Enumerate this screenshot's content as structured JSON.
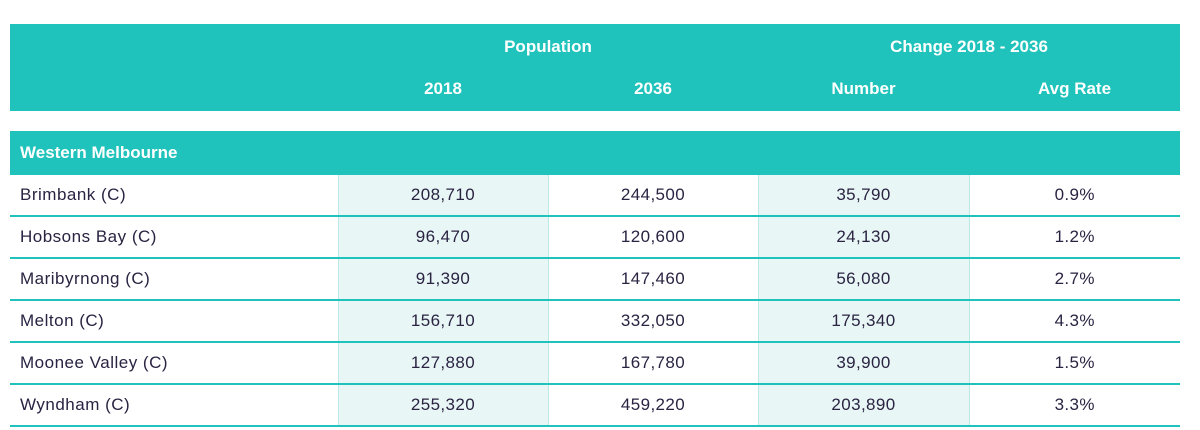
{
  "header": {
    "group_population": "Population",
    "group_change": "Change 2018 - 2036",
    "col_2018": "2018",
    "col_2036": "2036",
    "col_number": "Number",
    "col_avg_rate": "Avg Rate"
  },
  "region": {
    "name": "Western Melbourne"
  },
  "rows": [
    {
      "name": "Brimbank (C)",
      "pop_2018": "208,710",
      "pop_2036": "244,500",
      "change_number": "35,790",
      "avg_rate": "0.9%"
    },
    {
      "name": "Hobsons Bay (C)",
      "pop_2018": "96,470",
      "pop_2036": "120,600",
      "change_number": "24,130",
      "avg_rate": "1.2%"
    },
    {
      "name": "Maribyrnong (C)",
      "pop_2018": "91,390",
      "pop_2036": "147,460",
      "change_number": "56,080",
      "avg_rate": "2.7%"
    },
    {
      "name": "Melton (C)",
      "pop_2018": "156,710",
      "pop_2036": "332,050",
      "change_number": "175,340",
      "avg_rate": "4.3%"
    },
    {
      "name": "Moonee Valley (C)",
      "pop_2018": "127,880",
      "pop_2036": "167,780",
      "change_number": "39,900",
      "avg_rate": "1.5%"
    },
    {
      "name": "Wyndham (C)",
      "pop_2018": "255,320",
      "pop_2036": "459,220",
      "change_number": "203,890",
      "avg_rate": "3.3%"
    }
  ],
  "colors": {
    "accent": "#20c3bb",
    "shade": "#e8f7f6",
    "text": "#2a2342"
  }
}
